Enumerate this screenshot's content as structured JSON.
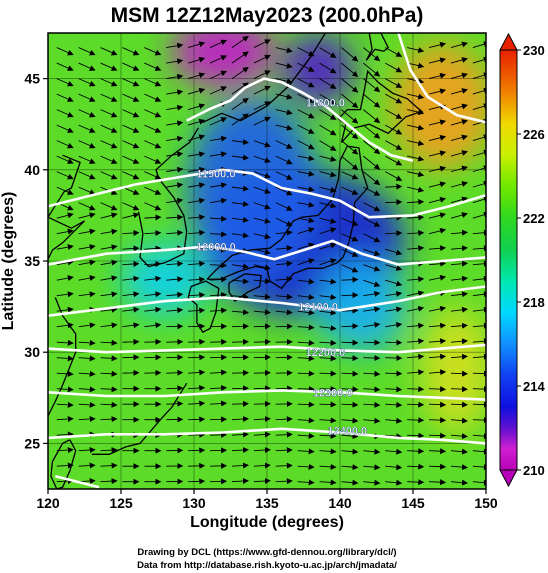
{
  "chart_data": {
    "type": "heatmap",
    "title": "MSM 12Z12May2023 (200.0hPa)",
    "xlabel": "Longitude (degrees)",
    "ylabel": "Latitude  (degrees)",
    "xlim": [
      120,
      150
    ],
    "ylim": [
      22.5,
      47.5
    ],
    "xticks": [
      "120",
      "125",
      "130",
      "135",
      "140",
      "145",
      "150"
    ],
    "yticks": [
      "25",
      "30",
      "35",
      "40",
      "45"
    ],
    "colorbar": {
      "min": 210,
      "max": 230,
      "labels": [
        "230",
        "226",
        "222",
        "218",
        "214",
        "210"
      ],
      "stops": [
        {
          "value": 210,
          "color": "#b800b8"
        },
        {
          "value": 211,
          "color": "#d020d0"
        },
        {
          "value": 212,
          "color": "#6010d0"
        },
        {
          "value": 213,
          "color": "#1010e0"
        },
        {
          "value": 214.5,
          "color": "#1040f0"
        },
        {
          "value": 216,
          "color": "#1090ff"
        },
        {
          "value": 217.5,
          "color": "#00d8ff"
        },
        {
          "value": 219,
          "color": "#00e8b0"
        },
        {
          "value": 220.5,
          "color": "#10d050"
        },
        {
          "value": 222,
          "color": "#30d820"
        },
        {
          "value": 223.5,
          "color": "#70e800"
        },
        {
          "value": 225,
          "color": "#c8f000"
        },
        {
          "value": 226.5,
          "color": "#f0d800"
        },
        {
          "value": 228,
          "color": "#f08000"
        },
        {
          "value": 230,
          "color": "#e82000"
        }
      ]
    },
    "background_color": "#5cdc28",
    "field_blobs": [
      {
        "lon": 137.5,
        "lat": 36.0,
        "rlon": 7.0,
        "rlat": 4.0,
        "color": "#1a22d8"
      },
      {
        "lon": 134.0,
        "lat": 39.0,
        "rlon": 4.5,
        "rlat": 5.0,
        "color": "#2060e8"
      },
      {
        "lon": 132.0,
        "lat": 46.5,
        "rlon": 3.5,
        "rlat": 2.0,
        "color": "#c020c8"
      },
      {
        "lon": 138.5,
        "lat": 45.5,
        "rlon": 2.5,
        "rlat": 2.0,
        "color": "#5020c8"
      },
      {
        "lon": 147.0,
        "lat": 43.5,
        "rlon": 3.5,
        "rlat": 3.5,
        "color": "#f0a020"
      },
      {
        "lon": 128.0,
        "lat": 34.0,
        "rlon": 3.0,
        "rlat": 2.0,
        "color": "#10d0e8"
      },
      {
        "lon": 141.5,
        "lat": 32.5,
        "rlon": 3.0,
        "rlat": 2.5,
        "color": "#1ab0f0"
      },
      {
        "lon": 148.0,
        "lat": 29.0,
        "rlon": 2.5,
        "rlat": 3.5,
        "color": "#d0e020"
      }
    ],
    "contours": [
      {
        "label": "11800.0",
        "label_lon": 139.0,
        "label_lat": 43.7,
        "points": [
          [
            129.5,
            42.7
          ],
          [
            131.0,
            43.3
          ],
          [
            132.5,
            43.8
          ],
          [
            133.5,
            44.5
          ],
          [
            134.8,
            45.0
          ],
          [
            136.0,
            44.8
          ],
          [
            137.5,
            44.2
          ],
          [
            139.0,
            43.5
          ],
          [
            140.5,
            42.5
          ],
          [
            142.0,
            41.5
          ],
          [
            143.5,
            40.8
          ],
          [
            145.0,
            40.5
          ]
        ]
      },
      {
        "label": "11900.0",
        "label_lon": 131.5,
        "label_lat": 39.8,
        "points": [
          [
            120.0,
            38.0
          ],
          [
            123.0,
            38.6
          ],
          [
            126.0,
            39.2
          ],
          [
            129.0,
            39.6
          ],
          [
            132.0,
            40.0
          ],
          [
            134.0,
            39.8
          ],
          [
            136.0,
            39.0
          ],
          [
            138.0,
            38.7
          ],
          [
            140.0,
            38.3
          ],
          [
            142.0,
            37.4
          ],
          [
            145.0,
            37.5
          ],
          [
            147.5,
            38.0
          ],
          [
            150.0,
            38.6
          ]
        ]
      },
      {
        "label": "12000.0",
        "label_lon": 131.5,
        "label_lat": 35.8,
        "points": [
          [
            120.0,
            34.8
          ],
          [
            124.0,
            35.4
          ],
          [
            128.0,
            35.6
          ],
          [
            131.0,
            35.8
          ],
          [
            133.5,
            35.5
          ],
          [
            135.5,
            35.1
          ],
          [
            137.5,
            35.6
          ],
          [
            139.5,
            36.1
          ],
          [
            141.5,
            35.4
          ],
          [
            144.0,
            34.8
          ],
          [
            147.0,
            35.0
          ],
          [
            150.0,
            35.2
          ]
        ]
      },
      {
        "label": "12100.0",
        "label_lon": 138.5,
        "label_lat": 32.5,
        "points": [
          [
            120.0,
            32.0
          ],
          [
            124.0,
            32.4
          ],
          [
            128.0,
            32.8
          ],
          [
            132.0,
            33.0
          ],
          [
            136.0,
            32.7
          ],
          [
            140.0,
            32.3
          ],
          [
            144.0,
            32.8
          ],
          [
            147.0,
            33.3
          ],
          [
            150.0,
            33.6
          ]
        ]
      },
      {
        "label": "12200.0",
        "label_lon": 139.0,
        "label_lat": 30.0,
        "points": [
          [
            120.0,
            30.2
          ],
          [
            124.0,
            30.0
          ],
          [
            128.0,
            30.1
          ],
          [
            132.0,
            30.2
          ],
          [
            136.0,
            30.3
          ],
          [
            140.0,
            30.1
          ],
          [
            144.0,
            30.0
          ],
          [
            147.0,
            30.2
          ],
          [
            150.0,
            30.4
          ]
        ]
      },
      {
        "label": "12300.0",
        "label_lon": 139.5,
        "label_lat": 27.8,
        "points": [
          [
            120.0,
            27.8
          ],
          [
            124.0,
            27.6
          ],
          [
            128.0,
            27.6
          ],
          [
            132.0,
            27.8
          ],
          [
            136.0,
            27.9
          ],
          [
            140.0,
            27.8
          ],
          [
            144.0,
            27.6
          ],
          [
            147.0,
            27.5
          ],
          [
            150.0,
            27.4
          ]
        ]
      },
      {
        "label": "12400.0",
        "label_lon": 140.5,
        "label_lat": 25.7,
        "points": [
          [
            120.0,
            25.3
          ],
          [
            124.0,
            25.5
          ],
          [
            128.0,
            25.5
          ],
          [
            132.0,
            25.6
          ],
          [
            136.0,
            25.8
          ],
          [
            140.0,
            25.6
          ],
          [
            144.0,
            25.3
          ],
          [
            147.0,
            25.2
          ],
          [
            150.0,
            25.0
          ]
        ]
      },
      {
        "label": "",
        "label_lon": 0,
        "label_lat": 0,
        "points": [
          [
            120.5,
            23.2
          ],
          [
            122.0,
            22.9
          ],
          [
            123.5,
            22.6
          ]
        ]
      },
      {
        "label": "",
        "label_lon": 0,
        "label_lat": 0,
        "points": [
          [
            144.0,
            47.5
          ],
          [
            144.8,
            45.5
          ],
          [
            146.0,
            44.0
          ],
          [
            148.0,
            43.0
          ],
          [
            150.0,
            42.6
          ]
        ]
      }
    ],
    "wind_field": {
      "description": "westerly jet streamlines; direction follows contours",
      "grid_lon_step": 1.5,
      "grid_lat_step": 0.85
    },
    "coastlines": [
      {
        "name": "korea",
        "points": [
          [
            126.2,
            37.7
          ],
          [
            126.5,
            36.5
          ],
          [
            126.3,
            35.2
          ],
          [
            126.9,
            34.7
          ],
          [
            128.0,
            34.9
          ],
          [
            129.3,
            35.4
          ],
          [
            129.5,
            36.6
          ],
          [
            129.3,
            37.5
          ],
          [
            128.6,
            38.5
          ],
          [
            127.6,
            39.5
          ],
          [
            127.4,
            40.0
          ],
          [
            128.5,
            40.8
          ],
          [
            129.7,
            41.5
          ],
          [
            130.3,
            42.3
          ]
        ]
      },
      {
        "name": "china-coast",
        "points": [
          [
            121.0,
            40.8
          ],
          [
            122.2,
            40.4
          ],
          [
            121.6,
            39.0
          ],
          [
            121.1,
            38.8
          ],
          [
            120.0,
            37.4
          ],
          [
            121.6,
            36.8
          ],
          [
            122.5,
            37.2
          ],
          [
            121.0,
            36.0
          ],
          [
            120.3,
            35.6
          ],
          [
            119.7,
            34.6
          ]
        ]
      },
      {
        "name": "east-china-coast",
        "points": [
          [
            120.5,
            33.0
          ],
          [
            121.0,
            32.0
          ],
          [
            121.9,
            31.0
          ],
          [
            121.9,
            30.0
          ],
          [
            121.5,
            29.2
          ],
          [
            121.0,
            28.2
          ],
          [
            120.5,
            27.3
          ],
          [
            120.0,
            26.5
          ]
        ]
      },
      {
        "name": "taiwan",
        "points": [
          [
            121.5,
            25.2
          ],
          [
            121.9,
            24.6
          ],
          [
            121.5,
            23.5
          ],
          [
            121.0,
            22.6
          ],
          [
            120.6,
            22.5
          ],
          [
            120.2,
            23.2
          ],
          [
            120.3,
            24.0
          ],
          [
            121.0,
            25.0
          ],
          [
            121.5,
            25.2
          ]
        ]
      },
      {
        "name": "kyushu",
        "points": [
          [
            129.8,
            33.6
          ],
          [
            130.8,
            33.9
          ],
          [
            131.7,
            33.5
          ],
          [
            131.5,
            32.2
          ],
          [
            131.1,
            31.3
          ],
          [
            130.6,
            31.1
          ],
          [
            130.2,
            31.6
          ],
          [
            130.2,
            32.6
          ],
          [
            129.6,
            33.0
          ],
          [
            129.8,
            33.6
          ]
        ]
      },
      {
        "name": "shikoku",
        "points": [
          [
            132.4,
            33.8
          ],
          [
            133.5,
            34.3
          ],
          [
            134.6,
            34.2
          ],
          [
            134.5,
            33.6
          ],
          [
            133.7,
            33.3
          ],
          [
            132.8,
            32.8
          ],
          [
            132.4,
            33.3
          ],
          [
            132.4,
            33.8
          ]
        ]
      },
      {
        "name": "honshu",
        "points": [
          [
            130.9,
            34.0
          ],
          [
            131.5,
            34.5
          ],
          [
            132.6,
            35.3
          ],
          [
            133.8,
            35.6
          ],
          [
            135.2,
            35.7
          ],
          [
            136.0,
            36.2
          ],
          [
            136.8,
            37.2
          ],
          [
            137.4,
            37.4
          ],
          [
            138.5,
            37.5
          ],
          [
            139.5,
            38.4
          ],
          [
            139.9,
            39.5
          ],
          [
            140.0,
            40.5
          ],
          [
            140.5,
            41.3
          ],
          [
            141.3,
            41.2
          ],
          [
            141.5,
            40.0
          ],
          [
            141.9,
            39.0
          ],
          [
            141.0,
            38.2
          ],
          [
            140.9,
            37.0
          ],
          [
            140.6,
            36.0
          ],
          [
            140.2,
            35.2
          ],
          [
            139.8,
            34.9
          ],
          [
            138.8,
            34.6
          ],
          [
            137.8,
            34.6
          ],
          [
            136.8,
            34.3
          ],
          [
            136.0,
            33.5
          ],
          [
            135.2,
            33.9
          ],
          [
            135.0,
            34.6
          ],
          [
            134.2,
            34.7
          ],
          [
            133.0,
            34.4
          ],
          [
            131.8,
            34.0
          ],
          [
            130.9,
            34.0
          ]
        ]
      },
      {
        "name": "hokkaido",
        "points": [
          [
            140.1,
            41.5
          ],
          [
            140.4,
            42.5
          ],
          [
            139.9,
            42.8
          ],
          [
            140.5,
            43.3
          ],
          [
            141.4,
            43.3
          ],
          [
            141.7,
            44.5
          ],
          [
            141.9,
            45.4
          ],
          [
            142.6,
            44.8
          ],
          [
            143.6,
            44.2
          ],
          [
            144.6,
            43.9
          ],
          [
            145.3,
            43.4
          ],
          [
            145.6,
            43.2
          ],
          [
            144.5,
            42.9
          ],
          [
            143.3,
            42.0
          ],
          [
            142.0,
            42.5
          ],
          [
            141.0,
            42.3
          ],
          [
            140.1,
            41.5
          ]
        ]
      },
      {
        "name": "sakhalin",
        "points": [
          [
            141.8,
            46.0
          ],
          [
            142.2,
            46.6
          ],
          [
            142.0,
            47.5
          ],
          [
            142.8,
            47.5
          ],
          [
            143.3,
            46.7
          ],
          [
            143.0,
            46.5
          ],
          [
            142.4,
            46.6
          ],
          [
            141.8,
            46.0
          ]
        ]
      },
      {
        "name": "ryukyu",
        "points": [
          [
            129.5,
            28.3
          ],
          [
            128.5,
            27.0
          ],
          [
            127.7,
            26.3
          ],
          [
            126.3,
            25.0
          ],
          [
            125.3,
            24.8
          ],
          [
            124.2,
            24.4
          ],
          [
            123.0,
            24.4
          ]
        ]
      },
      {
        "name": "primorye",
        "points": [
          [
            130.6,
            42.6
          ],
          [
            131.9,
            43.1
          ],
          [
            133.2,
            42.7
          ],
          [
            135.0,
            43.5
          ],
          [
            136.5,
            44.6
          ],
          [
            138.0,
            46.2
          ],
          [
            139.0,
            47.5
          ]
        ]
      }
    ]
  },
  "credits": {
    "line1": "Drawing by DCL (https://www.gfd-dennou.org/library/dcl/)",
    "line2": "Data from http://database.rish.kyoto-u.ac.jp/arch/jmadata/"
  }
}
